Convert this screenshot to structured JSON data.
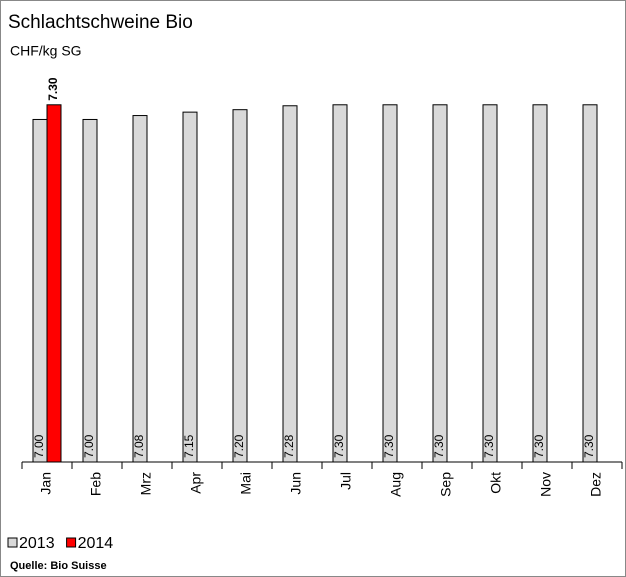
{
  "chart_data": {
    "type": "bar",
    "title": "Schlachtschweine Bio",
    "y_label": "CHF/kg SG",
    "categories": [
      "Jan",
      "Feb",
      "Mrz",
      "Apr",
      "Mai",
      "Jun",
      "Jul",
      "Aug",
      "Sep",
      "Okt",
      "Nov",
      "Dez"
    ],
    "series": [
      {
        "name": "2013",
        "color": "#d9d9d9",
        "values": [
          7.0,
          7.0,
          7.08,
          7.15,
          7.2,
          7.28,
          7.3,
          7.3,
          7.3,
          7.3,
          7.3,
          7.3
        ],
        "value_labels": [
          "7.00",
          "7.00",
          "7.08",
          "7.15",
          "7.20",
          "7.28",
          "7.30",
          "7.30",
          "7.30",
          "7.30",
          "7.30",
          "7.30"
        ]
      },
      {
        "name": "2014",
        "color": "#ff0000",
        "values": [
          7.3,
          null,
          null,
          null,
          null,
          null,
          null,
          null,
          null,
          null,
          null,
          null
        ],
        "value_labels": [
          "7.30",
          null,
          null,
          null,
          null,
          null,
          null,
          null,
          null,
          null,
          null,
          null
        ]
      }
    ],
    "ylim": [
      0,
      7.5
    ],
    "yticks": [],
    "grid": false,
    "source": "Quelle: Bio Suisse"
  }
}
